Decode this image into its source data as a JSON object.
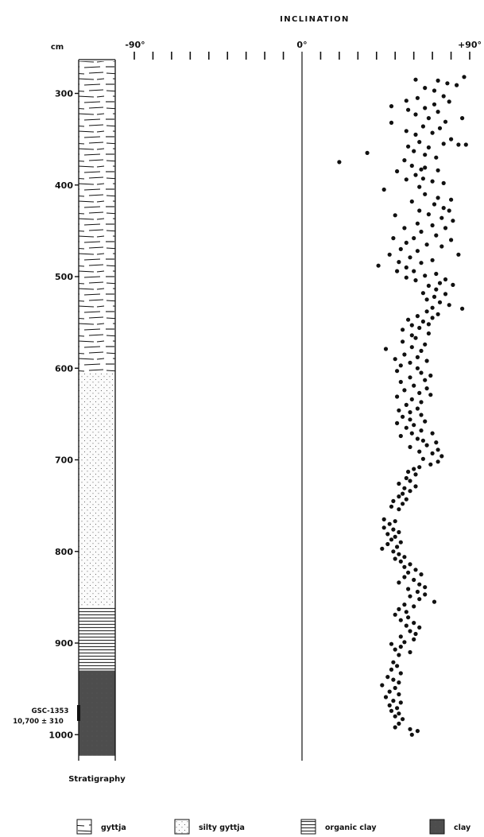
{
  "chart_data": {
    "type": "scatter",
    "title": "INCLINATION",
    "ylabel": "cm",
    "x_ticks": [
      "-90°",
      "0°",
      "+90°"
    ],
    "xlim": [
      -90,
      90
    ],
    "ylim": [
      1000,
      260
    ],
    "y_ticks": [
      "300",
      "400",
      "500",
      "600",
      "700",
      "800",
      "900",
      "1000"
    ],
    "grid": false,
    "legend_position": "bottom",
    "column_label": "Stratigraphy",
    "date_label": {
      "sample": "GSC-1353",
      "age": "10,700 ± 310",
      "depth": 915
    },
    "stratigraphy": [
      {
        "unit": "gyttja",
        "top": 265,
        "bottom": 605
      },
      {
        "unit": "silty gyttja",
        "top": 605,
        "bottom": 860
      },
      {
        "unit": "organic clay",
        "top": 860,
        "bottom": 930
      },
      {
        "unit": "clay",
        "top": 930,
        "bottom": 1023
      }
    ],
    "legend": [
      {
        "key": "gyttja",
        "label": "gyttja"
      },
      {
        "key": "silty",
        "label": "silty gyttja"
      },
      {
        "key": "organic",
        "label": "organic clay"
      },
      {
        "key": "clay",
        "label": "clay"
      }
    ],
    "points": [
      [
        87,
        282
      ],
      [
        61,
        285
      ],
      [
        73,
        286
      ],
      [
        78,
        289
      ],
      [
        66,
        294
      ],
      [
        71,
        297
      ],
      [
        83,
        291
      ],
      [
        76,
        303
      ],
      [
        62,
        305
      ],
      [
        56,
        308
      ],
      [
        48,
        314
      ],
      [
        71,
        312
      ],
      [
        79,
        309
      ],
      [
        66,
        316
      ],
      [
        57,
        318
      ],
      [
        73,
        320
      ],
      [
        61,
        323
      ],
      [
        68,
        327
      ],
      [
        86,
        327
      ],
      [
        77,
        331
      ],
      [
        48,
        332
      ],
      [
        65,
        336
      ],
      [
        74,
        338
      ],
      [
        56,
        341
      ],
      [
        61,
        345
      ],
      [
        70,
        343
      ],
      [
        80,
        350
      ],
      [
        63,
        353
      ],
      [
        76,
        355
      ],
      [
        88,
        356
      ],
      [
        84,
        356
      ],
      [
        57,
        358
      ],
      [
        68,
        359
      ],
      [
        60,
        363
      ],
      [
        35,
        365
      ],
      [
        66,
        367
      ],
      [
        72,
        370
      ],
      [
        55,
        373
      ],
      [
        20,
        375
      ],
      [
        59,
        379
      ],
      [
        66,
        381
      ],
      [
        51,
        385
      ],
      [
        64,
        383
      ],
      [
        73,
        384
      ],
      [
        61,
        389
      ],
      [
        65,
        393
      ],
      [
        56,
        394
      ],
      [
        70,
        396
      ],
      [
        63,
        402
      ],
      [
        76,
        398
      ],
      [
        44,
        405
      ],
      [
        66,
        410
      ],
      [
        73,
        414
      ],
      [
        80,
        416
      ],
      [
        59,
        418
      ],
      [
        71,
        421
      ],
      [
        76,
        425
      ],
      [
        63,
        428
      ],
      [
        79,
        428
      ],
      [
        68,
        432
      ],
      [
        50,
        433
      ],
      [
        75,
        436
      ],
      [
        81,
        439
      ],
      [
        62,
        442
      ],
      [
        70,
        444
      ],
      [
        55,
        447
      ],
      [
        77,
        447
      ],
      [
        64,
        451
      ],
      [
        72,
        455
      ],
      [
        49,
        458
      ],
      [
        60,
        458
      ],
      [
        80,
        460
      ],
      [
        56,
        463
      ],
      [
        67,
        465
      ],
      [
        75,
        467
      ],
      [
        53,
        470
      ],
      [
        62,
        472
      ],
      [
        47,
        476
      ],
      [
        84,
        476
      ],
      [
        58,
        479
      ],
      [
        70,
        482
      ],
      [
        52,
        484
      ],
      [
        64,
        485
      ],
      [
        41,
        488
      ],
      [
        56,
        490
      ],
      [
        60,
        494
      ],
      [
        51,
        494
      ],
      [
        72,
        497
      ],
      [
        66,
        499
      ],
      [
        56,
        501
      ],
      [
        77,
        503
      ],
      [
        61,
        504
      ],
      [
        74,
        507
      ],
      [
        81,
        509
      ],
      [
        68,
        510
      ],
      [
        72,
        514
      ],
      [
        65,
        518
      ],
      [
        77,
        519
      ],
      [
        71,
        522
      ],
      [
        67,
        525
      ],
      [
        74,
        528
      ],
      [
        79,
        531
      ],
      [
        70,
        534
      ],
      [
        86,
        535
      ],
      [
        67,
        538
      ],
      [
        73,
        541
      ],
      [
        62,
        543
      ],
      [
        70,
        545
      ],
      [
        57,
        547
      ],
      [
        65,
        549
      ],
      [
        68,
        552
      ],
      [
        59,
        553
      ],
      [
        63,
        556
      ],
      [
        54,
        558
      ],
      [
        68,
        562
      ],
      [
        59,
        564
      ],
      [
        61,
        567
      ],
      [
        54,
        571
      ],
      [
        66,
        574
      ],
      [
        59,
        577
      ],
      [
        45,
        579
      ],
      [
        64,
        581
      ],
      [
        55,
        585
      ],
      [
        62,
        588
      ],
      [
        50,
        590
      ],
      [
        67,
        592
      ],
      [
        58,
        594
      ],
      [
        53,
        597
      ],
      [
        62,
        600
      ],
      [
        51,
        603
      ],
      [
        64,
        605
      ],
      [
        69,
        608
      ],
      [
        58,
        610
      ],
      [
        66,
        613
      ],
      [
        53,
        615
      ],
      [
        60,
        619
      ],
      [
        67,
        622
      ],
      [
        55,
        624
      ],
      [
        63,
        627
      ],
      [
        69,
        629
      ],
      [
        51,
        631
      ],
      [
        59,
        634
      ],
      [
        64,
        637
      ],
      [
        56,
        640
      ],
      [
        62,
        644
      ],
      [
        52,
        646
      ],
      [
        58,
        648
      ],
      [
        64,
        651
      ],
      [
        54,
        653
      ],
      [
        58,
        656
      ],
      [
        66,
        658
      ],
      [
        51,
        660
      ],
      [
        60,
        662
      ],
      [
        56,
        665
      ],
      [
        64,
        668
      ],
      [
        59,
        671
      ],
      [
        70,
        671
      ],
      [
        53,
        674
      ],
      [
        62,
        677
      ],
      [
        65,
        679
      ],
      [
        72,
        681
      ],
      [
        67,
        684
      ],
      [
        58,
        686
      ],
      [
        73,
        689
      ],
      [
        63,
        691
      ],
      [
        70,
        693
      ],
      [
        75,
        696
      ],
      [
        65,
        699
      ],
      [
        73,
        702
      ],
      [
        69,
        705
      ],
      [
        63,
        708
      ],
      [
        60,
        710
      ],
      [
        57,
        713
      ],
      [
        61,
        716
      ],
      [
        56,
        720
      ],
      [
        58,
        723
      ],
      [
        52,
        726
      ],
      [
        61,
        729
      ],
      [
        55,
        731
      ],
      [
        58,
        734
      ],
      [
        54,
        737
      ],
      [
        52,
        740
      ],
      [
        56,
        743
      ],
      [
        49,
        745
      ],
      [
        54,
        748
      ],
      [
        48,
        751
      ],
      [
        52,
        754
      ],
      [
        44,
        765
      ],
      [
        50,
        767
      ],
      [
        47,
        770
      ],
      [
        44,
        774
      ],
      [
        49,
        776
      ],
      [
        52,
        779
      ],
      [
        46,
        781
      ],
      [
        50,
        784
      ],
      [
        48,
        787
      ],
      [
        53,
        790
      ],
      [
        46,
        792
      ],
      [
        51,
        795
      ],
      [
        43,
        797
      ],
      [
        49,
        800
      ],
      [
        52,
        803
      ],
      [
        55,
        806
      ],
      [
        50,
        808
      ],
      [
        53,
        811
      ],
      [
        58,
        814
      ],
      [
        55,
        817
      ],
      [
        61,
        820
      ],
      [
        57,
        823
      ],
      [
        64,
        825
      ],
      [
        55,
        828
      ],
      [
        60,
        831
      ],
      [
        52,
        834
      ],
      [
        63,
        836
      ],
      [
        66,
        839
      ],
      [
        57,
        841
      ],
      [
        62,
        844
      ],
      [
        66,
        847
      ],
      [
        58,
        849
      ],
      [
        63,
        852
      ],
      [
        71,
        855
      ],
      [
        55,
        858
      ],
      [
        60,
        860
      ],
      [
        52,
        863
      ],
      [
        56,
        866
      ],
      [
        50,
        869
      ],
      [
        57,
        872
      ],
      [
        53,
        875
      ],
      [
        60,
        878
      ],
      [
        56,
        881
      ],
      [
        63,
        883
      ],
      [
        58,
        887
      ],
      [
        61,
        890
      ],
      [
        53,
        893
      ],
      [
        60,
        896
      ],
      [
        55,
        899
      ],
      [
        48,
        901
      ],
      [
        53,
        904
      ],
      [
        50,
        907
      ],
      [
        58,
        910
      ],
      [
        52,
        913
      ],
      [
        49,
        921
      ],
      [
        51,
        925
      ],
      [
        48,
        929
      ],
      [
        53,
        933
      ],
      [
        46,
        937
      ],
      [
        49,
        940
      ],
      [
        52,
        943
      ],
      [
        43,
        946
      ],
      [
        50,
        949
      ],
      [
        47,
        953
      ],
      [
        52,
        956
      ],
      [
        45,
        959
      ],
      [
        49,
        963
      ],
      [
        53,
        965
      ],
      [
        47,
        968
      ],
      [
        51,
        971
      ],
      [
        48,
        974
      ],
      [
        52,
        977
      ],
      [
        50,
        980
      ],
      [
        54,
        983
      ],
      [
        52,
        988
      ],
      [
        50,
        992
      ],
      [
        58,
        994
      ],
      [
        62,
        996
      ],
      [
        59,
        1000
      ]
    ]
  }
}
